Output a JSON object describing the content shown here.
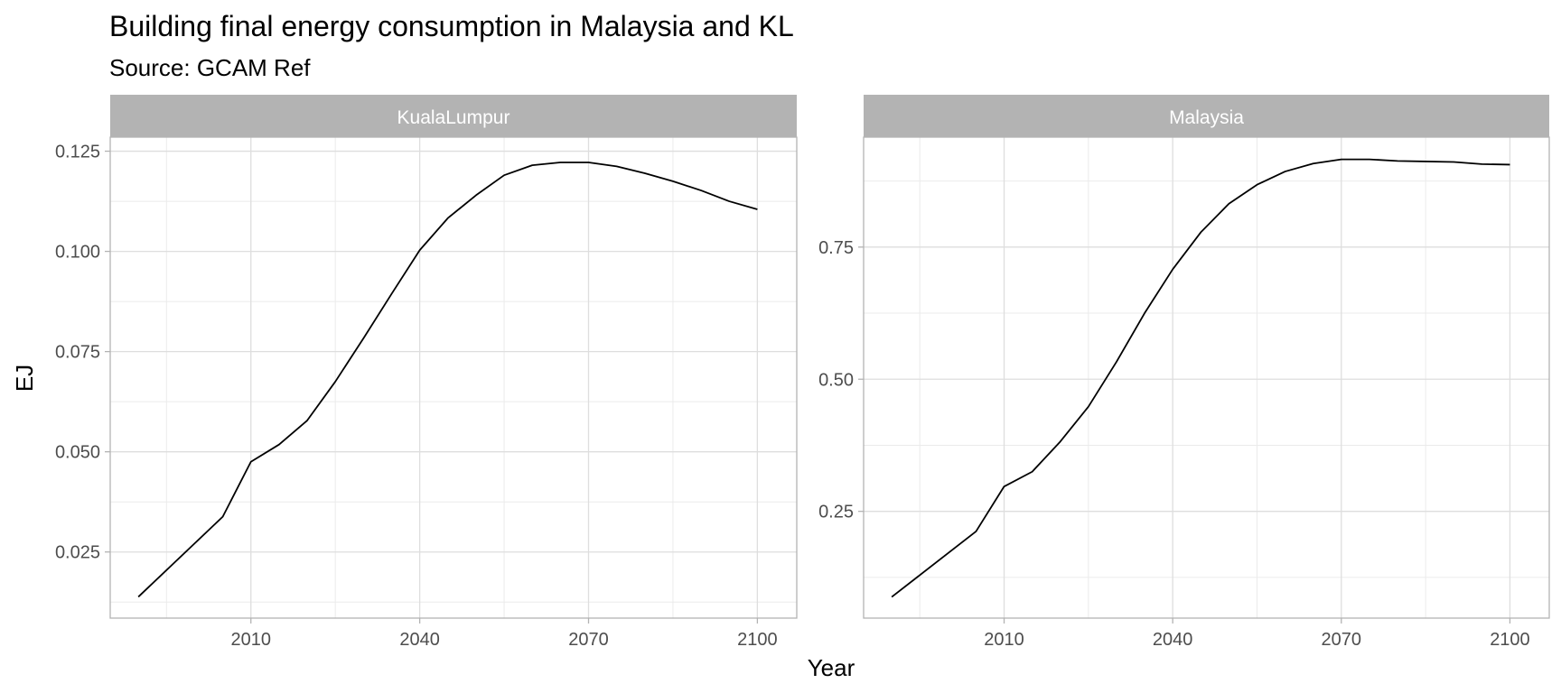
{
  "title": "Building final energy consumption in Malaysia and KL",
  "subtitle": "Source: GCAM Ref",
  "chart_data": [
    {
      "type": "line",
      "panel": "KualaLumpur",
      "xlabel": "Year",
      "ylabel": "EJ",
      "xlim": [
        1985,
        2107
      ],
      "ylim": [
        0.0085,
        0.1285
      ],
      "x_ticks": [
        2010,
        2040,
        2070,
        2100
      ],
      "y_ticks": [
        0.025,
        0.05,
        0.075,
        0.1,
        0.125
      ],
      "y_tick_labels": [
        "0.025",
        "0.050",
        "0.075",
        "0.100",
        "0.125"
      ],
      "grid": true,
      "x": [
        1990,
        2005,
        2010,
        2015,
        2020,
        2025,
        2030,
        2035,
        2040,
        2045,
        2050,
        2055,
        2060,
        2065,
        2070,
        2075,
        2080,
        2085,
        2090,
        2095,
        2100
      ],
      "series": [
        {
          "values": [
            0.0138,
            0.0338,
            0.0475,
            0.0518,
            0.0578,
            0.0675,
            0.0783,
            0.0894,
            0.1003,
            0.1083,
            0.114,
            0.119,
            0.1215,
            0.1222,
            0.1222,
            0.1212,
            0.1195,
            0.1175,
            0.1152,
            0.1125,
            0.1105
          ],
          "color": "#000000"
        }
      ]
    },
    {
      "type": "line",
      "panel": "Malaysia",
      "xlabel": "Year",
      "ylabel": "EJ",
      "xlim": [
        1985,
        2107
      ],
      "ylim": [
        0.048,
        0.958
      ],
      "x_ticks": [
        2010,
        2040,
        2070,
        2100
      ],
      "y_ticks": [
        0.25,
        0.5,
        0.75
      ],
      "y_tick_labels": [
        "0.25",
        "0.50",
        "0.75"
      ],
      "grid": true,
      "x": [
        1990,
        2005,
        2010,
        2015,
        2020,
        2025,
        2030,
        2035,
        2040,
        2045,
        2050,
        2055,
        2060,
        2065,
        2070,
        2075,
        2080,
        2085,
        2090,
        2095,
        2100
      ],
      "series": [
        {
          "values": [
            0.088,
            0.212,
            0.297,
            0.325,
            0.382,
            0.448,
            0.533,
            0.625,
            0.708,
            0.778,
            0.832,
            0.868,
            0.893,
            0.908,
            0.916,
            0.916,
            0.913,
            0.912,
            0.911,
            0.907,
            0.906
          ],
          "color": "#000000"
        }
      ]
    }
  ]
}
